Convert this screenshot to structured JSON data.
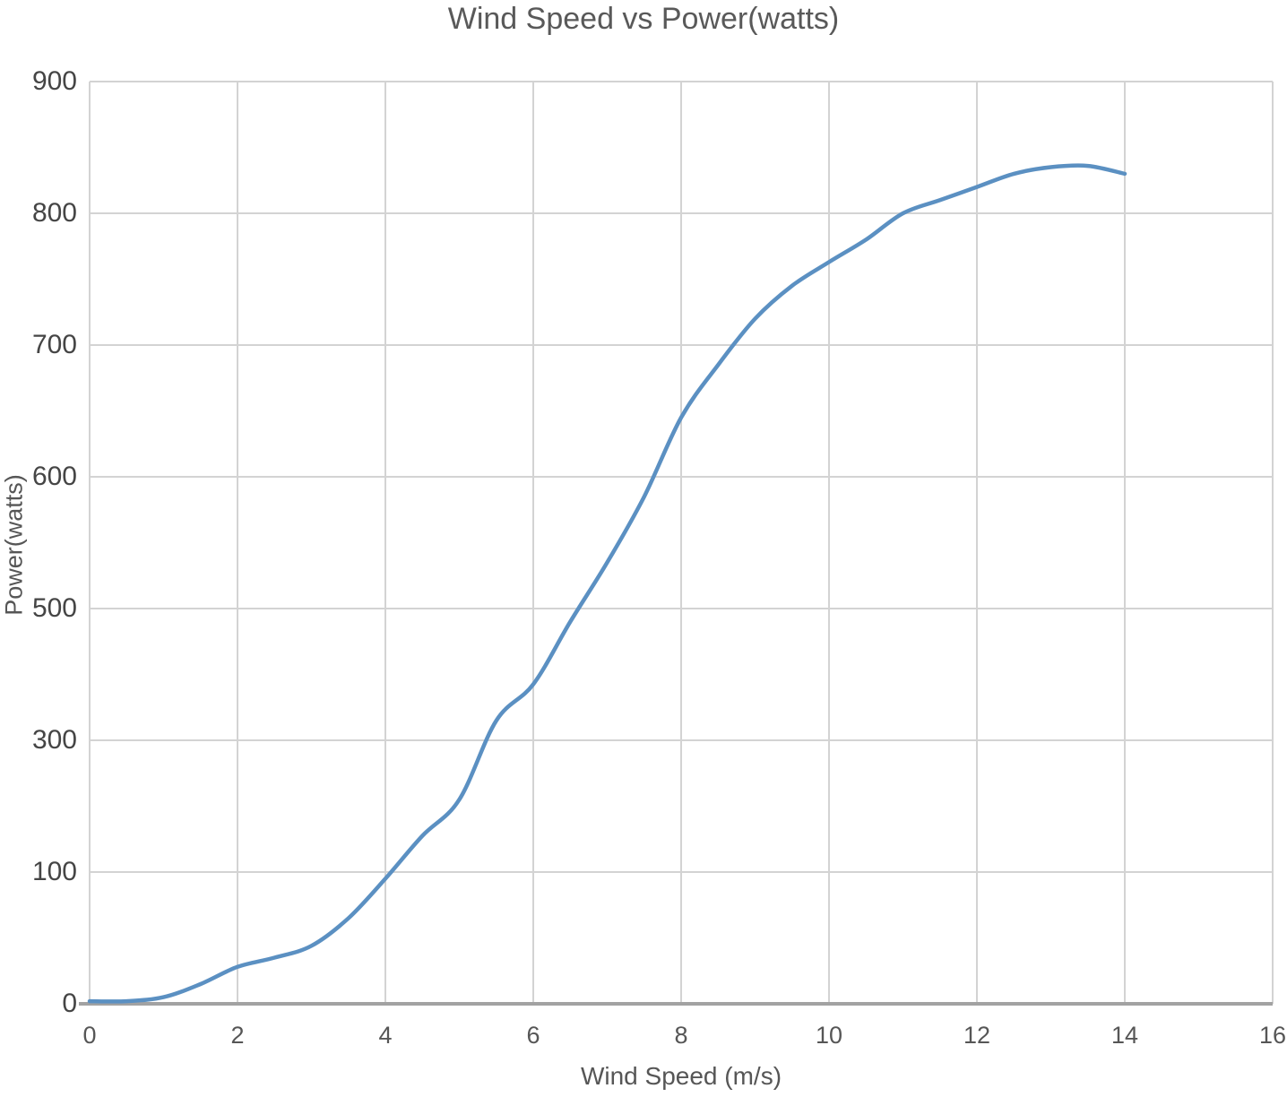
{
  "chart": {
    "title": "Wind Speed vs Power(watts)",
    "x_axis_title": "Wind Speed (m/s)",
    "y_axis_title": "Power(watts)"
  },
  "colors": {
    "line": "#5b90c2",
    "gridline": "#d3d3d3",
    "axis_line": "#a2a2a2",
    "title_text": "#595959",
    "tick_text": "#565656"
  },
  "chart_data": {
    "type": "line",
    "title": "Wind Speed vs Power(watts)",
    "xlabel": "Wind Speed (m/s)",
    "ylabel": "Power(watts)",
    "xlim": [
      0,
      16
    ],
    "x_ticks": [
      0,
      2,
      4,
      6,
      8,
      10,
      12,
      14,
      16
    ],
    "y_tick_labels_top_to_bottom": [
      "900",
      "800",
      "700",
      "600",
      "500",
      "300",
      "100",
      "0"
    ],
    "y_tick_values_top_to_bottom": [
      900,
      800,
      700,
      600,
      500,
      300,
      100,
      0
    ],
    "grid": true,
    "legend": false,
    "series": [
      {
        "name": "Power(watts)",
        "x": [
          0,
          0.5,
          1,
          1.5,
          2,
          2.5,
          3,
          3.5,
          4,
          4.5,
          5,
          5.5,
          6,
          6.5,
          7,
          7.5,
          8,
          8.5,
          9,
          9.5,
          10,
          10.5,
          11,
          11.5,
          12,
          12.5,
          13,
          13.5,
          14
        ],
        "y": [
          2,
          2,
          5,
          15,
          28,
          35,
          44,
          65,
          95,
          155,
          210,
          330,
          385,
          480,
          535,
          585,
          645,
          685,
          720,
          745,
          763,
          780,
          800,
          810,
          820,
          830,
          835,
          836,
          830
        ]
      }
    ]
  }
}
